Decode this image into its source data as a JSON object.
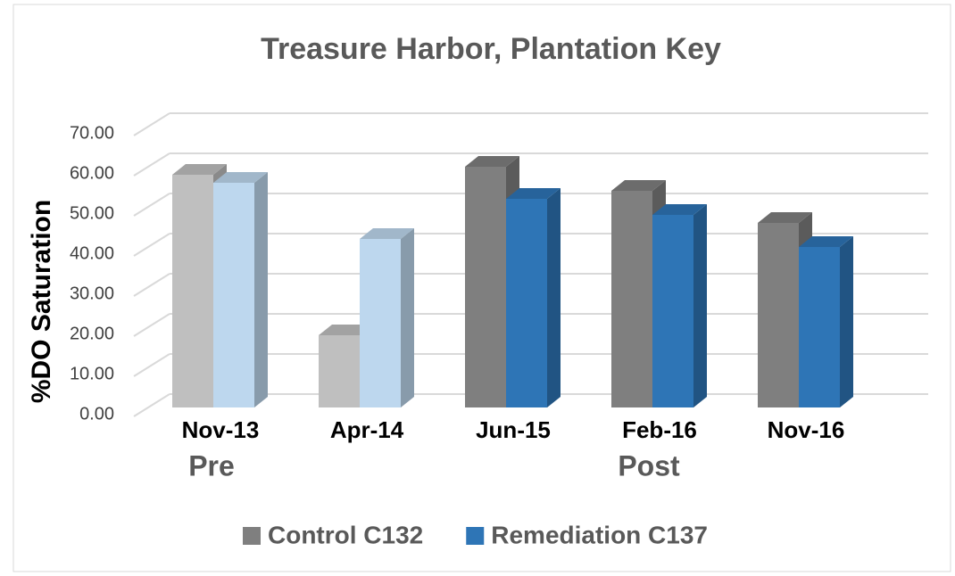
{
  "chart_data": {
    "type": "bar3d",
    "title": "Treasure Harbor, Plantation Key",
    "y_label": "%DO Saturation",
    "categories": [
      "Nov-13",
      "Apr-14",
      "Jun-15",
      "Feb-16",
      "Nov-16"
    ],
    "series": [
      {
        "name": "Control C132",
        "color": "#7f7f7f",
        "point_colors": [
          "#bfbfbf",
          "#bfbfbf",
          "#7f7f7f",
          "#7f7f7f",
          "#7f7f7f"
        ],
        "values": [
          58,
          18,
          60,
          54,
          46
        ]
      },
      {
        "name": "Remediation C137",
        "color": "#2e75b6",
        "point_colors": [
          "#bdd7ee",
          "#bdd7ee",
          "#2e75b6",
          "#2e75b6",
          "#2e75b6"
        ],
        "values": [
          56,
          42,
          52,
          48,
          40
        ]
      }
    ],
    "ylim": [
      0,
      70
    ],
    "yticks": [
      {
        "value": 0,
        "label": "0.00"
      },
      {
        "value": 10,
        "label": "10.00"
      },
      {
        "value": 20,
        "label": "20.00"
      },
      {
        "value": 30,
        "label": "30.00"
      },
      {
        "value": 40,
        "label": "40.00"
      },
      {
        "value": 50,
        "label": "50.00"
      },
      {
        "value": 60,
        "label": "60.00"
      },
      {
        "value": 70,
        "label": "70.00"
      }
    ],
    "annotations": [
      "Pre",
      "Post"
    ],
    "grid": true,
    "legend": "bottom"
  }
}
